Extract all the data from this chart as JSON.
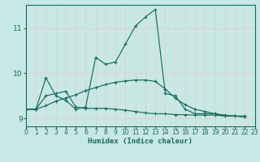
{
  "xlabel": "Humidex (Indice chaleur)",
  "bg_color": "#c8e8e5",
  "grid_color": "#b0d8d5",
  "line_color": "#1a6b5a",
  "xlim": [
    0,
    23
  ],
  "ylim": [
    8.82,
    11.52
  ],
  "yticks": [
    9,
    10,
    11
  ],
  "xticks": [
    0,
    1,
    2,
    3,
    4,
    5,
    6,
    7,
    8,
    9,
    10,
    11,
    12,
    13,
    14,
    15,
    16,
    17,
    18,
    19,
    20,
    21,
    22,
    23
  ],
  "series1_x": [
    0,
    1,
    2,
    3,
    4,
    5,
    6,
    7,
    8,
    9,
    10,
    11,
    12,
    13,
    14,
    15,
    16,
    17,
    18,
    19,
    20,
    21,
    22
  ],
  "series1_y": [
    9.2,
    9.2,
    9.9,
    9.5,
    9.4,
    9.2,
    9.25,
    10.35,
    10.2,
    10.25,
    10.65,
    11.05,
    11.25,
    11.42,
    9.55,
    9.5,
    9.2,
    9.1,
    9.1,
    9.1,
    9.05,
    9.05,
    9.05
  ],
  "series2_x": [
    0,
    1,
    2,
    3,
    4,
    5,
    6,
    7,
    8,
    9,
    10,
    11,
    12,
    13,
    14,
    15,
    16,
    17,
    18,
    19,
    20,
    21,
    22
  ],
  "series2_y": [
    9.2,
    9.2,
    9.5,
    9.55,
    9.6,
    9.25,
    9.22,
    9.22,
    9.22,
    9.2,
    9.18,
    9.15,
    9.12,
    9.1,
    9.1,
    9.08,
    9.08,
    9.07,
    9.07,
    9.07,
    9.05,
    9.05,
    9.03
  ],
  "series3_x": [
    0,
    1,
    2,
    3,
    4,
    5,
    6,
    7,
    8,
    9,
    10,
    11,
    12,
    13,
    14,
    15,
    16,
    17,
    18,
    19,
    20,
    21,
    22
  ],
  "series3_y": [
    9.2,
    9.2,
    9.28,
    9.38,
    9.45,
    9.52,
    9.62,
    9.68,
    9.75,
    9.8,
    9.83,
    9.85,
    9.85,
    9.82,
    9.65,
    9.45,
    9.3,
    9.2,
    9.15,
    9.1,
    9.07,
    9.05,
    9.03
  ]
}
